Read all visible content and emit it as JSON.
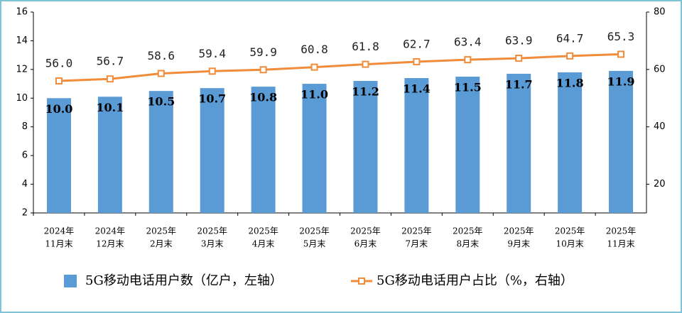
{
  "chart_data": {
    "type": "bar-line",
    "categories": [
      [
        "2024年",
        "11月末"
      ],
      [
        "2024年",
        "12月末"
      ],
      [
        "2025年",
        "2月末"
      ],
      [
        "2025年",
        "3月末"
      ],
      [
        "2025年",
        "4月末"
      ],
      [
        "2025年",
        "5月末"
      ],
      [
        "2025年",
        "6月末"
      ],
      [
        "2025年",
        "7月末"
      ],
      [
        "2025年",
        "8月末"
      ],
      [
        "2025年",
        "9月末"
      ],
      [
        "2025年",
        "10月末"
      ],
      [
        "2025年",
        "11月末"
      ]
    ],
    "series": [
      {
        "name": "5G移动电话用户数（亿户，左轴）",
        "color": "#5b9bd5",
        "type": "bar",
        "values": [
          10.0,
          10.1,
          10.5,
          10.7,
          10.8,
          11.0,
          11.2,
          11.4,
          11.5,
          11.7,
          11.8,
          11.9
        ],
        "value_labels": [
          "10.0",
          "10.1",
          "10.5",
          "10.7",
          "10.8",
          "11.0",
          "11.2",
          "11.4",
          "11.5",
          "11.7",
          "11.8",
          "11.9"
        ]
      },
      {
        "name": "5G移动电话用户占比（%，右轴）",
        "color": "#f08c3a",
        "type": "line",
        "axis": "y2",
        "values": [
          56.0,
          56.7,
          58.6,
          59.4,
          59.9,
          60.8,
          61.8,
          62.7,
          63.4,
          63.9,
          64.7,
          65.3
        ],
        "value_labels": [
          "56.0",
          "56.7",
          "58.6",
          "59.4",
          "59.9",
          "60.8",
          "61.8",
          "62.7",
          "63.4",
          "63.9",
          "64.7",
          "65.3"
        ]
      }
    ],
    "ylim": [
      2,
      16
    ],
    "yticks": [
      2,
      4,
      6,
      8,
      10,
      12,
      14,
      16
    ],
    "y2lim": [
      10,
      80
    ],
    "y2ticks": [
      20,
      40,
      60,
      80
    ]
  }
}
